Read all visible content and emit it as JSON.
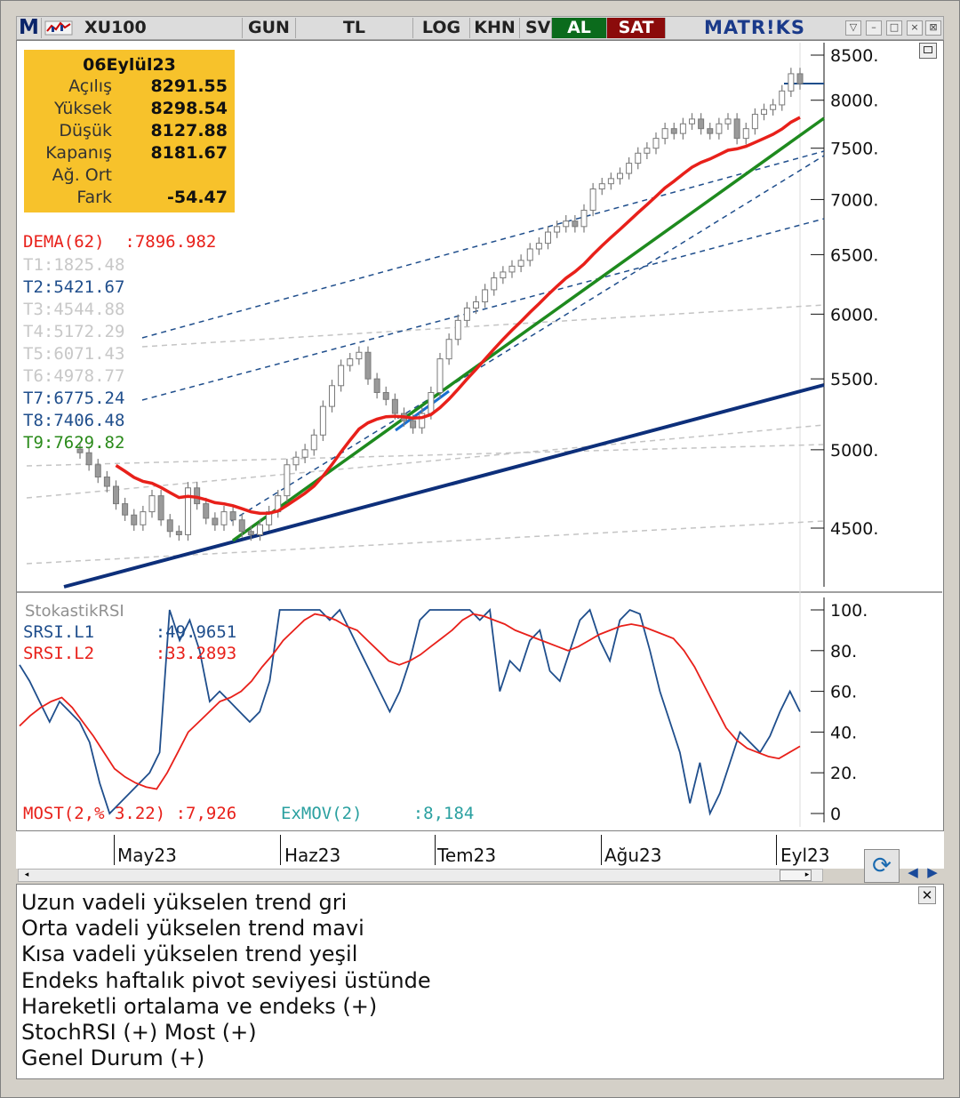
{
  "toolbar": {
    "app_initial": "M",
    "symbol": "XU100",
    "buttons": [
      "GUN",
      "TL",
      "LOG",
      "KHN",
      "SV"
    ],
    "buy_label": "AL",
    "sell_label": "SAT",
    "brand": "MATR!KS"
  },
  "ohlc": {
    "date": "06Eylül23",
    "rows": [
      {
        "label": "Açılış",
        "value": "8291.55"
      },
      {
        "label": "Yüksek",
        "value": "8298.54"
      },
      {
        "label": "Düşük",
        "value": "8127.88"
      },
      {
        "label": "Kapanış",
        "value": "8181.67"
      },
      {
        "label": "Ağ. Ort",
        "value": ""
      },
      {
        "label": "Fark",
        "value": "-54.47"
      }
    ]
  },
  "indicators": [
    {
      "label": "DEMA(62)",
      "value": ":7896.982",
      "color": "#e8201a"
    },
    {
      "label": "T1:1825.48",
      "value": "",
      "color": "#c8c8c8"
    },
    {
      "label": "T2:5421.67",
      "value": "",
      "color": "#1f4e8c"
    },
    {
      "label": "T3:4544.88",
      "value": "",
      "color": "#c8c8c8"
    },
    {
      "label": "T4:5172.29",
      "value": "",
      "color": "#c8c8c8"
    },
    {
      "label": "T5:6071.43",
      "value": "",
      "color": "#c8c8c8"
    },
    {
      "label": "T6:4978.77",
      "value": "",
      "color": "#c8c8c8"
    },
    {
      "label": "T7:6775.24",
      "value": "",
      "color": "#1f4e8c"
    },
    {
      "label": "T8:7406.48",
      "value": "",
      "color": "#1f4e8c"
    },
    {
      "label": "T9:7629.82",
      "value": "",
      "color": "#2a8a1a"
    }
  ],
  "rsi_panel": {
    "title": "StokastikRSI",
    "l1": {
      "label": "SRSI.L1",
      "value": ":49.9651",
      "color": "#1f4e8c"
    },
    "l2": {
      "label": "SRSI.L2",
      "value": ":33.2893",
      "color": "#e8201a"
    },
    "most": "MOST(2,% 3.22) :7,926",
    "exmov_label": "ExMOV(2)",
    "exmov_value": ":8,184"
  },
  "chart_data": [
    {
      "type": "candlestick",
      "title": "XU100",
      "y_scale": "log",
      "y_ticks": [
        "8500.",
        "8000.",
        "7500.",
        "7000.",
        "6500.",
        "6000.",
        "5500.",
        "5000.",
        "4500."
      ],
      "x_ticks": [
        "May23",
        "Haz23",
        "Tem23",
        "Ağu23",
        "Eyl23"
      ],
      "close_series_approx": [
        4980,
        4900,
        4820,
        4760,
        4650,
        4580,
        4520,
        4600,
        4700,
        4550,
        4480,
        4460,
        4750,
        4650,
        4560,
        4520,
        4600,
        4550,
        4480,
        4460,
        4520,
        4600,
        4700,
        4900,
        4950,
        5000,
        5100,
        5300,
        5450,
        5600,
        5650,
        5700,
        5500,
        5400,
        5350,
        5250,
        5200,
        5150,
        5250,
        5400,
        5650,
        5800,
        5950,
        6050,
        6100,
        6200,
        6300,
        6350,
        6400,
        6450,
        6550,
        6600,
        6700,
        6750,
        6800,
        6750,
        6900,
        7100,
        7150,
        7200,
        7250,
        7350,
        7450,
        7500,
        7600,
        7700,
        7650,
        7750,
        7800,
        7700,
        7650,
        7750,
        7800,
        7600,
        7700,
        7850,
        7900,
        7950,
        8100,
        8290,
        8180
      ],
      "lines": [
        {
          "name": "DEMA(62)",
          "color": "#e8201a"
        },
        {
          "name": "Uzun vadeli trend",
          "color": "#0d2f7a"
        },
        {
          "name": "Orta vadeli trend",
          "color": "#1a6fd0"
        },
        {
          "name": "Kısa vadeli trend",
          "color": "#1e8a1e"
        }
      ]
    },
    {
      "type": "line",
      "title": "StokastikRSI",
      "ylim": [
        0,
        100
      ],
      "y_ticks": [
        "100.",
        "80.",
        "60.",
        "40.",
        "20.",
        "0"
      ],
      "series": [
        {
          "name": "SRSI.L1",
          "values": [
            73,
            65,
            55,
            45,
            55,
            50,
            45,
            35,
            15,
            0,
            5,
            10,
            15,
            20,
            30,
            100,
            85,
            95,
            80,
            55,
            60,
            55,
            50,
            45,
            50,
            65,
            100,
            100,
            100,
            100,
            100,
            95,
            100,
            90,
            80,
            70,
            60,
            50,
            60,
            75,
            95,
            100,
            100,
            100,
            100,
            100,
            95,
            100,
            60,
            75,
            70,
            85,
            90,
            70,
            65,
            80,
            95,
            100,
            85,
            75,
            95,
            100,
            98,
            80,
            60,
            45,
            30,
            5,
            25,
            0,
            10,
            25,
            40,
            35,
            30,
            38,
            50,
            60,
            50
          ]
        },
        {
          "name": "SRSI.L2",
          "values": [
            43,
            48,
            52,
            55,
            57,
            52,
            45,
            38,
            30,
            22,
            18,
            15,
            13,
            12,
            20,
            30,
            40,
            45,
            50,
            55,
            57,
            60,
            65,
            72,
            78,
            85,
            90,
            95,
            98,
            97,
            95,
            92,
            90,
            85,
            80,
            75,
            73,
            75,
            78,
            82,
            86,
            90,
            95,
            98,
            97,
            95,
            93,
            90,
            88,
            86,
            84,
            82,
            80,
            82,
            85,
            88,
            90,
            92,
            93,
            92,
            90,
            88,
            86,
            80,
            72,
            62,
            52,
            42,
            36,
            32,
            30,
            28,
            27,
            30,
            33
          ]
        }
      ]
    }
  ],
  "notes": [
    "Uzun vadeli yükselen trend gri",
    "Orta vadeli yükselen trend mavi",
    "Kısa vadeli yükselen trend yeşil",
    "Endeks haftalık pivot seviyesi üstünde",
    "Hareketli ortalama ve endeks (+)",
    "StochRSI (+) Most (+)",
    "Genel Durum (+)"
  ]
}
